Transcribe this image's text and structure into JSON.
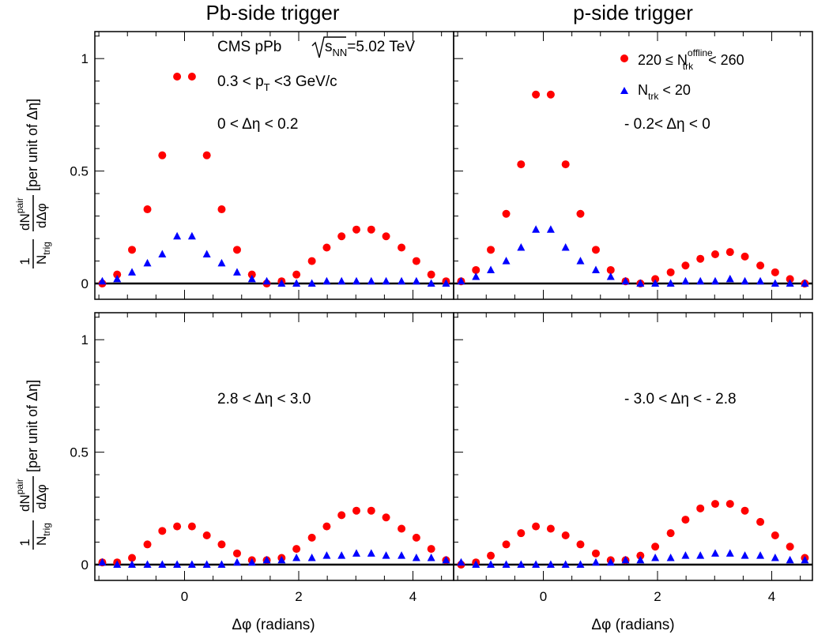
{
  "column_titles": [
    "Pb-side trigger",
    "p-side trigger"
  ],
  "y_axis_label": {
    "frac_num": "1",
    "frac_den": "N",
    "frac_den_sub": "trig",
    "deriv_num": "dN",
    "deriv_num_sup": "pair",
    "deriv_den": "dΔφ",
    "unit": "[per unit of Δη]"
  },
  "x_axis_label": "Δφ (radians)",
  "annotations": {
    "experiment": "CMS pPb",
    "energy_sqrt": "s",
    "energy_sub": "NN",
    "energy_value": "=5.02 TeV",
    "pt_prefix": "0.3 < p",
    "pt_sub": "T",
    "pt_suffix": " <3 GeV/c"
  },
  "legend": {
    "high_prefix": "220 ≤ N",
    "high_sup": "offline",
    "high_sub": "trk",
    "high_suffix": " < 260",
    "low_prefix": "N",
    "low_sub": "trk",
    "low_suffix": " < 20"
  },
  "colors": {
    "high_mult": "#ff0000",
    "low_mult": "#0000ff",
    "axis": "#000000"
  },
  "chart_data": [
    {
      "type": "scatter",
      "panel": "top-left",
      "label": "0 < Δη < 0.2",
      "xlim": [
        -1.5708,
        4.7124
      ],
      "ylim": [
        -0.07,
        1.12
      ],
      "y_ticks": [
        0,
        0.5,
        1
      ],
      "y_tick_labels": [
        "0",
        "0.5",
        "1"
      ],
      "x_ticks": [
        0,
        2,
        4
      ],
      "x_tick_labels": [
        "0",
        "2",
        "4"
      ],
      "x": [
        -1.44,
        -1.18,
        -0.92,
        -0.65,
        -0.39,
        -0.13,
        0.13,
        0.39,
        0.65,
        0.92,
        1.18,
        1.44,
        1.7,
        1.96,
        2.23,
        2.49,
        2.75,
        3.01,
        3.27,
        3.53,
        3.8,
        4.06,
        4.32,
        4.58
      ],
      "series": [
        {
          "name": "high",
          "marker": "circle",
          "values": [
            0.0,
            0.04,
            0.15,
            0.33,
            0.57,
            0.92,
            0.92,
            0.57,
            0.33,
            0.15,
            0.04,
            0.0,
            0.01,
            0.04,
            0.1,
            0.16,
            0.21,
            0.24,
            0.24,
            0.21,
            0.16,
            0.1,
            0.04,
            0.01
          ]
        },
        {
          "name": "low",
          "marker": "triangle",
          "values": [
            0.01,
            0.02,
            0.05,
            0.09,
            0.13,
            0.21,
            0.21,
            0.13,
            0.09,
            0.05,
            0.02,
            0.01,
            0.0,
            0.0,
            0.0,
            0.01,
            0.01,
            0.01,
            0.01,
            0.01,
            0.01,
            0.01,
            0.0,
            0.0
          ]
        }
      ]
    },
    {
      "type": "scatter",
      "panel": "top-right",
      "label": "- 0.2< Δη < 0",
      "xlim": [
        -1.5708,
        4.7124
      ],
      "ylim": [
        -0.07,
        1.12
      ],
      "y_ticks": [
        0,
        0.5,
        1
      ],
      "y_tick_labels": [],
      "x_ticks": [
        0,
        2,
        4
      ],
      "x_tick_labels": [
        "0",
        "2",
        "4"
      ],
      "x": [
        -1.44,
        -1.18,
        -0.92,
        -0.65,
        -0.39,
        -0.13,
        0.13,
        0.39,
        0.65,
        0.92,
        1.18,
        1.44,
        1.7,
        1.96,
        2.23,
        2.49,
        2.75,
        3.01,
        3.27,
        3.53,
        3.8,
        4.06,
        4.32,
        4.58
      ],
      "series": [
        {
          "name": "high",
          "marker": "circle",
          "values": [
            0.01,
            0.06,
            0.15,
            0.31,
            0.53,
            0.84,
            0.84,
            0.53,
            0.31,
            0.15,
            0.06,
            0.01,
            0.0,
            0.02,
            0.05,
            0.08,
            0.11,
            0.13,
            0.14,
            0.12,
            0.08,
            0.05,
            0.02,
            0.0
          ]
        },
        {
          "name": "low",
          "marker": "triangle",
          "values": [
            0.01,
            0.03,
            0.06,
            0.1,
            0.16,
            0.24,
            0.24,
            0.16,
            0.1,
            0.06,
            0.03,
            0.01,
            0.0,
            0.0,
            0.0,
            0.01,
            0.01,
            0.01,
            0.02,
            0.01,
            0.01,
            0.0,
            0.0,
            0.0
          ]
        }
      ]
    },
    {
      "type": "scatter",
      "panel": "bottom-left",
      "label": "2.8 < Δη < 3.0",
      "xlim": [
        -1.5708,
        4.7124
      ],
      "ylim": [
        -0.07,
        1.12
      ],
      "y_ticks": [
        0,
        0.5,
        1
      ],
      "y_tick_labels": [
        "0",
        "0.5",
        "1"
      ],
      "x_ticks": [
        0,
        2,
        4
      ],
      "x_tick_labels": [
        "0",
        "2",
        "4"
      ],
      "x": [
        -1.44,
        -1.18,
        -0.92,
        -0.65,
        -0.39,
        -0.13,
        0.13,
        0.39,
        0.65,
        0.92,
        1.18,
        1.44,
        1.7,
        1.96,
        2.23,
        2.49,
        2.75,
        3.01,
        3.27,
        3.53,
        3.8,
        4.06,
        4.32,
        4.58
      ],
      "series": [
        {
          "name": "high",
          "marker": "circle",
          "values": [
            0.01,
            0.01,
            0.03,
            0.09,
            0.15,
            0.17,
            0.17,
            0.13,
            0.09,
            0.05,
            0.02,
            0.02,
            0.03,
            0.07,
            0.12,
            0.17,
            0.22,
            0.24,
            0.24,
            0.21,
            0.16,
            0.12,
            0.07,
            0.02
          ]
        },
        {
          "name": "low",
          "marker": "triangle",
          "values": [
            0.01,
            0.0,
            0.0,
            0.0,
            0.0,
            0.0,
            0.0,
            0.0,
            0.0,
            0.01,
            0.01,
            0.02,
            0.02,
            0.03,
            0.03,
            0.04,
            0.04,
            0.05,
            0.05,
            0.04,
            0.04,
            0.03,
            0.03,
            0.02
          ]
        }
      ]
    },
    {
      "type": "scatter",
      "panel": "bottom-right",
      "label": "- 3.0 < Δη < - 2.8",
      "xlim": [
        -1.5708,
        4.7124
      ],
      "ylim": [
        -0.07,
        1.12
      ],
      "y_ticks": [
        0,
        0.5,
        1
      ],
      "y_tick_labels": [],
      "x_ticks": [
        0,
        2,
        4
      ],
      "x_tick_labels": [
        "0",
        "2",
        "4"
      ],
      "x": [
        -1.44,
        -1.18,
        -0.92,
        -0.65,
        -0.39,
        -0.13,
        0.13,
        0.39,
        0.65,
        0.92,
        1.18,
        1.44,
        1.7,
        1.96,
        2.23,
        2.49,
        2.75,
        3.01,
        3.27,
        3.53,
        3.8,
        4.06,
        4.32,
        4.58
      ],
      "series": [
        {
          "name": "high",
          "marker": "circle",
          "values": [
            0.0,
            0.01,
            0.04,
            0.09,
            0.14,
            0.17,
            0.16,
            0.13,
            0.09,
            0.05,
            0.02,
            0.02,
            0.04,
            0.08,
            0.14,
            0.2,
            0.25,
            0.27,
            0.27,
            0.24,
            0.19,
            0.13,
            0.08,
            0.03
          ]
        },
        {
          "name": "low",
          "marker": "triangle",
          "values": [
            0.01,
            0.0,
            0.0,
            0.0,
            0.0,
            0.0,
            0.0,
            0.0,
            0.0,
            0.01,
            0.01,
            0.02,
            0.02,
            0.03,
            0.03,
            0.04,
            0.04,
            0.05,
            0.05,
            0.04,
            0.04,
            0.03,
            0.02,
            0.02
          ]
        }
      ]
    }
  ]
}
